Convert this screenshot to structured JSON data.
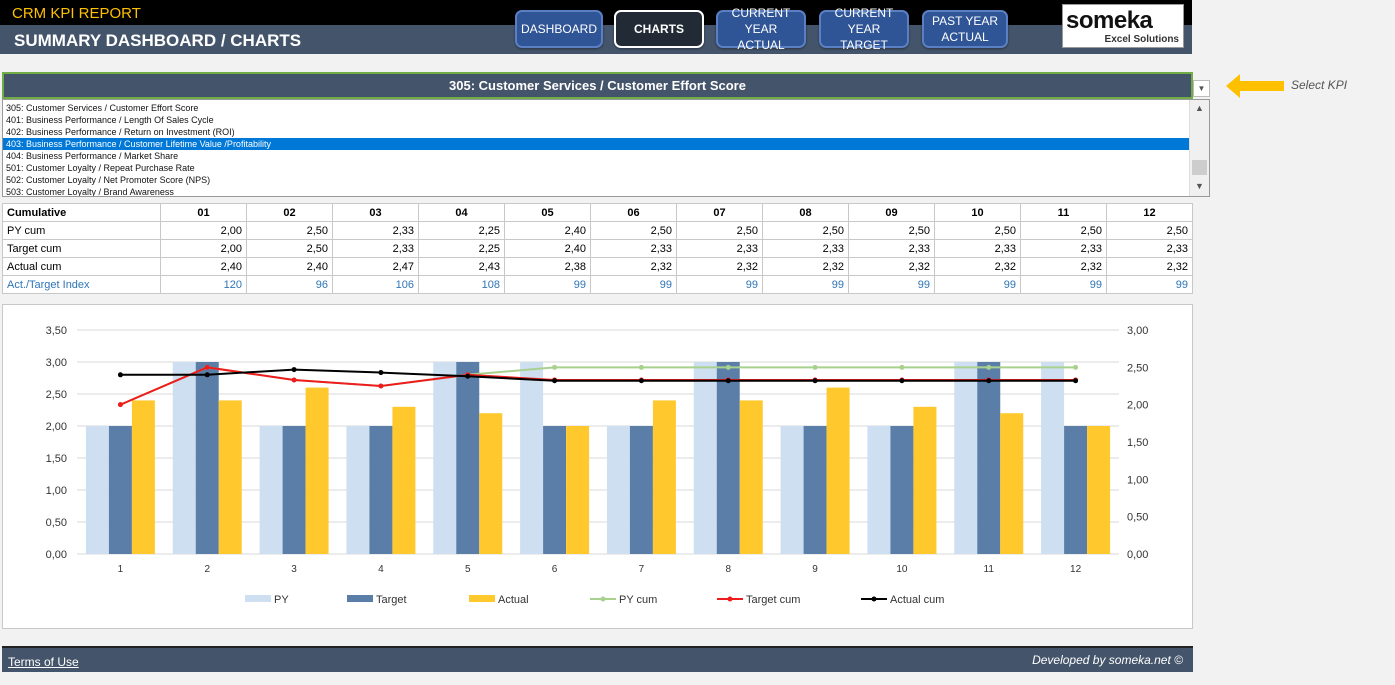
{
  "header": {
    "app_title": "CRM KPI REPORT",
    "page_title": "SUMMARY DASHBOARD / CHARTS",
    "nav": [
      {
        "label_line1": "DASHBOARD",
        "label_line2": ""
      },
      {
        "label_line1": "CHARTS",
        "label_line2": ""
      },
      {
        "label_line1": "CURRENT YEAR",
        "label_line2": "ACTUAL"
      },
      {
        "label_line1": "CURRENT YEAR",
        "label_line2": "TARGET"
      },
      {
        "label_line1": "PAST YEAR",
        "label_line2": "ACTUAL"
      }
    ],
    "active_nav": "CHARTS",
    "logo_main": "someka",
    "logo_sub": "Excel Solutions"
  },
  "selector": {
    "selected_kpi": "305: Customer Services / Customer Effort Score",
    "hint": "Select KPI",
    "list": [
      "305: Customer Services / Customer Effort Score",
      "401: Business Performance / Length Of Sales Cycle",
      "402: Business Performance / Return on Investment (ROI)",
      "403: Business Performance / Customer Lifetime Value /Profitability",
      "404: Business Performance / Market Share",
      "501: Customer Loyalty / Repeat Purchase Rate",
      "502: Customer Loyalty / Net Promoter Score (NPS)",
      "503: Customer Loyalty / Brand Awareness"
    ],
    "highlighted_index": 3
  },
  "table": {
    "header_label": "Cumulative",
    "months": [
      "01",
      "02",
      "03",
      "04",
      "05",
      "06",
      "07",
      "08",
      "09",
      "10",
      "11",
      "12"
    ],
    "rows": [
      {
        "label": "PY cum",
        "values": [
          "2,00",
          "2,50",
          "2,33",
          "2,25",
          "2,40",
          "2,50",
          "2,50",
          "2,50",
          "2,50",
          "2,50",
          "2,50",
          "2,50"
        ]
      },
      {
        "label": "Target cum",
        "values": [
          "2,00",
          "2,50",
          "2,33",
          "2,25",
          "2,40",
          "2,33",
          "2,33",
          "2,33",
          "2,33",
          "2,33",
          "2,33",
          "2,33"
        ]
      },
      {
        "label": "Actual cum",
        "values": [
          "2,40",
          "2,40",
          "2,47",
          "2,43",
          "2,38",
          "2,32",
          "2,32",
          "2,32",
          "2,32",
          "2,32",
          "2,32",
          "2,32"
        ]
      },
      {
        "label": "Act./Target Index",
        "values": [
          "120",
          "96",
          "106",
          "108",
          "99",
          "99",
          "99",
          "99",
          "99",
          "99",
          "99",
          "99"
        ]
      }
    ]
  },
  "chart_data": {
    "type": "bar",
    "categories": [
      "1",
      "2",
      "3",
      "4",
      "5",
      "6",
      "7",
      "8",
      "9",
      "10",
      "11",
      "12"
    ],
    "ylim": [
      0,
      3.5
    ],
    "y2lim": [
      0,
      3.0
    ],
    "yticks": [
      "0,00",
      "0,50",
      "1,00",
      "1,50",
      "2,00",
      "2,50",
      "3,00",
      "3,50"
    ],
    "y2ticks": [
      "0,00",
      "0,50",
      "1,00",
      "1,50",
      "2,00",
      "2,50",
      "3,00"
    ],
    "grid": true,
    "legend": "bottom",
    "series": [
      {
        "name": "PY",
        "kind": "bar",
        "axis": "left",
        "color": "#cddff0",
        "values": [
          2,
          3,
          2,
          2,
          3,
          3,
          2,
          3,
          2,
          2,
          3,
          3
        ]
      },
      {
        "name": "Target",
        "kind": "bar",
        "axis": "left",
        "color": "#5b7ea8",
        "values": [
          2,
          3,
          2,
          2,
          3,
          2,
          2,
          3,
          2,
          2,
          3,
          2
        ]
      },
      {
        "name": "Actual",
        "kind": "bar",
        "axis": "left",
        "color": "#ffc92e",
        "values": [
          2.4,
          2.4,
          2.6,
          2.3,
          2.2,
          2,
          2.4,
          2.4,
          2.6,
          2.3,
          2.2,
          2
        ]
      },
      {
        "name": "PY cum",
        "kind": "line",
        "axis": "right",
        "color": "#a9d18e",
        "values": [
          2,
          2.5,
          2.33,
          2.25,
          2.4,
          2.5,
          2.5,
          2.5,
          2.5,
          2.5,
          2.5,
          2.5
        ]
      },
      {
        "name": "Target cum",
        "kind": "line",
        "axis": "right",
        "color": "#ee1c1c",
        "values": [
          2,
          2.5,
          2.33,
          2.25,
          2.4,
          2.33,
          2.33,
          2.33,
          2.33,
          2.33,
          2.33,
          2.33
        ]
      },
      {
        "name": "Actual cum",
        "kind": "line",
        "axis": "right",
        "color": "#000000",
        "values": [
          2.4,
          2.4,
          2.47,
          2.43,
          2.38,
          2.32,
          2.32,
          2.32,
          2.32,
          2.32,
          2.32,
          2.32
        ]
      }
    ]
  },
  "footer": {
    "terms": "Terms of Use",
    "developed": "Developed by someka.net ©"
  }
}
